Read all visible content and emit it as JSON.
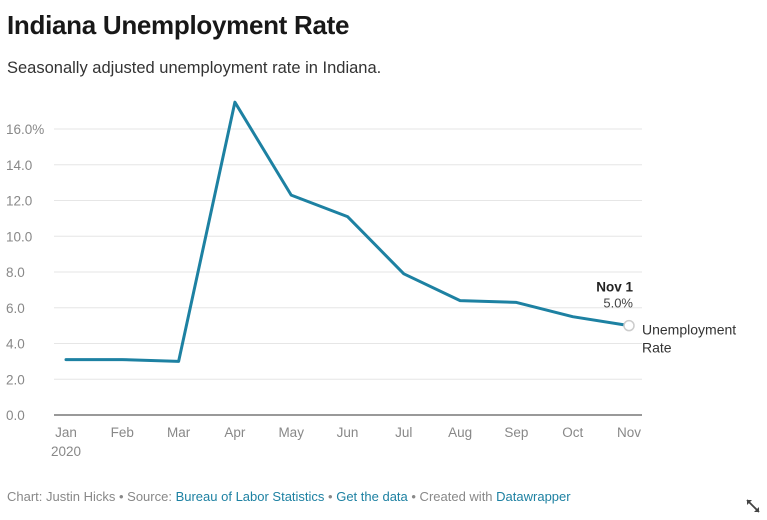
{
  "title": "Indiana Unemployment Rate",
  "subtitle": "Seasonally adjusted unemployment rate in Indiana.",
  "footer": {
    "chart_by": "Chart: Justin Hicks",
    "sep1": " • Source: ",
    "source_link": "Bureau of Labor Statistics",
    "sep2": " • ",
    "data_link": "Get the data",
    "sep3": " • Created with ",
    "tool_link": "Datawrapper"
  },
  "icons": {
    "expand": "expand-arrows-icon"
  },
  "colors": {
    "line": "#1d81a2",
    "grid": "#e6e6e6",
    "axis": "#333333",
    "tick": "#888888",
    "link": "#1d81a2"
  },
  "chart_data": {
    "type": "line",
    "categories": [
      "Jan",
      "Feb",
      "Mar",
      "Apr",
      "May",
      "Jun",
      "Jul",
      "Aug",
      "Sep",
      "Oct",
      "Nov"
    ],
    "x_sublabel": "2020",
    "series": [
      {
        "name": "Unemployment Rate",
        "values": [
          3.1,
          3.1,
          3.0,
          17.5,
          12.3,
          11.1,
          7.9,
          6.4,
          6.3,
          5.5,
          5.0
        ]
      }
    ],
    "y_ticks": [
      "0.0",
      "2.0",
      "4.0",
      "6.0",
      "8.0",
      "10.0",
      "12.0",
      "14.0",
      "16.0%"
    ],
    "y_tick_values": [
      0,
      2,
      4,
      6,
      8,
      10,
      12,
      14,
      16
    ],
    "ylim": [
      0,
      16
    ],
    "grid": true,
    "annotation": {
      "date": "Nov 1",
      "value": "5.0%"
    },
    "legend": "direct-label-right"
  }
}
